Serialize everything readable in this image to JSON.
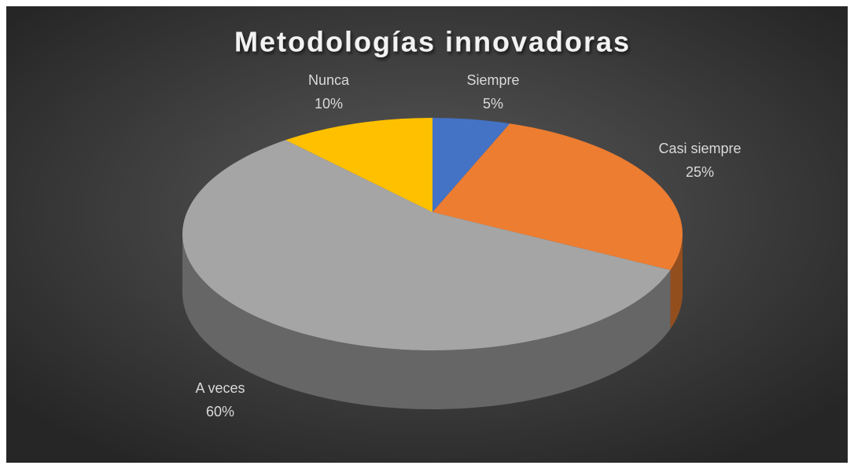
{
  "chart_data": {
    "type": "pie",
    "title": "Metodologías innovadoras",
    "categories": [
      "Siempre",
      "Casi siempre",
      "A veces",
      "Nunca"
    ],
    "values": [
      5,
      25,
      60,
      10
    ],
    "value_labels": [
      "5%",
      "25%",
      "60%",
      "10%"
    ],
    "colors": [
      "#4472c4",
      "#ed7d31",
      "#a5a5a5",
      "#ffc000"
    ]
  }
}
